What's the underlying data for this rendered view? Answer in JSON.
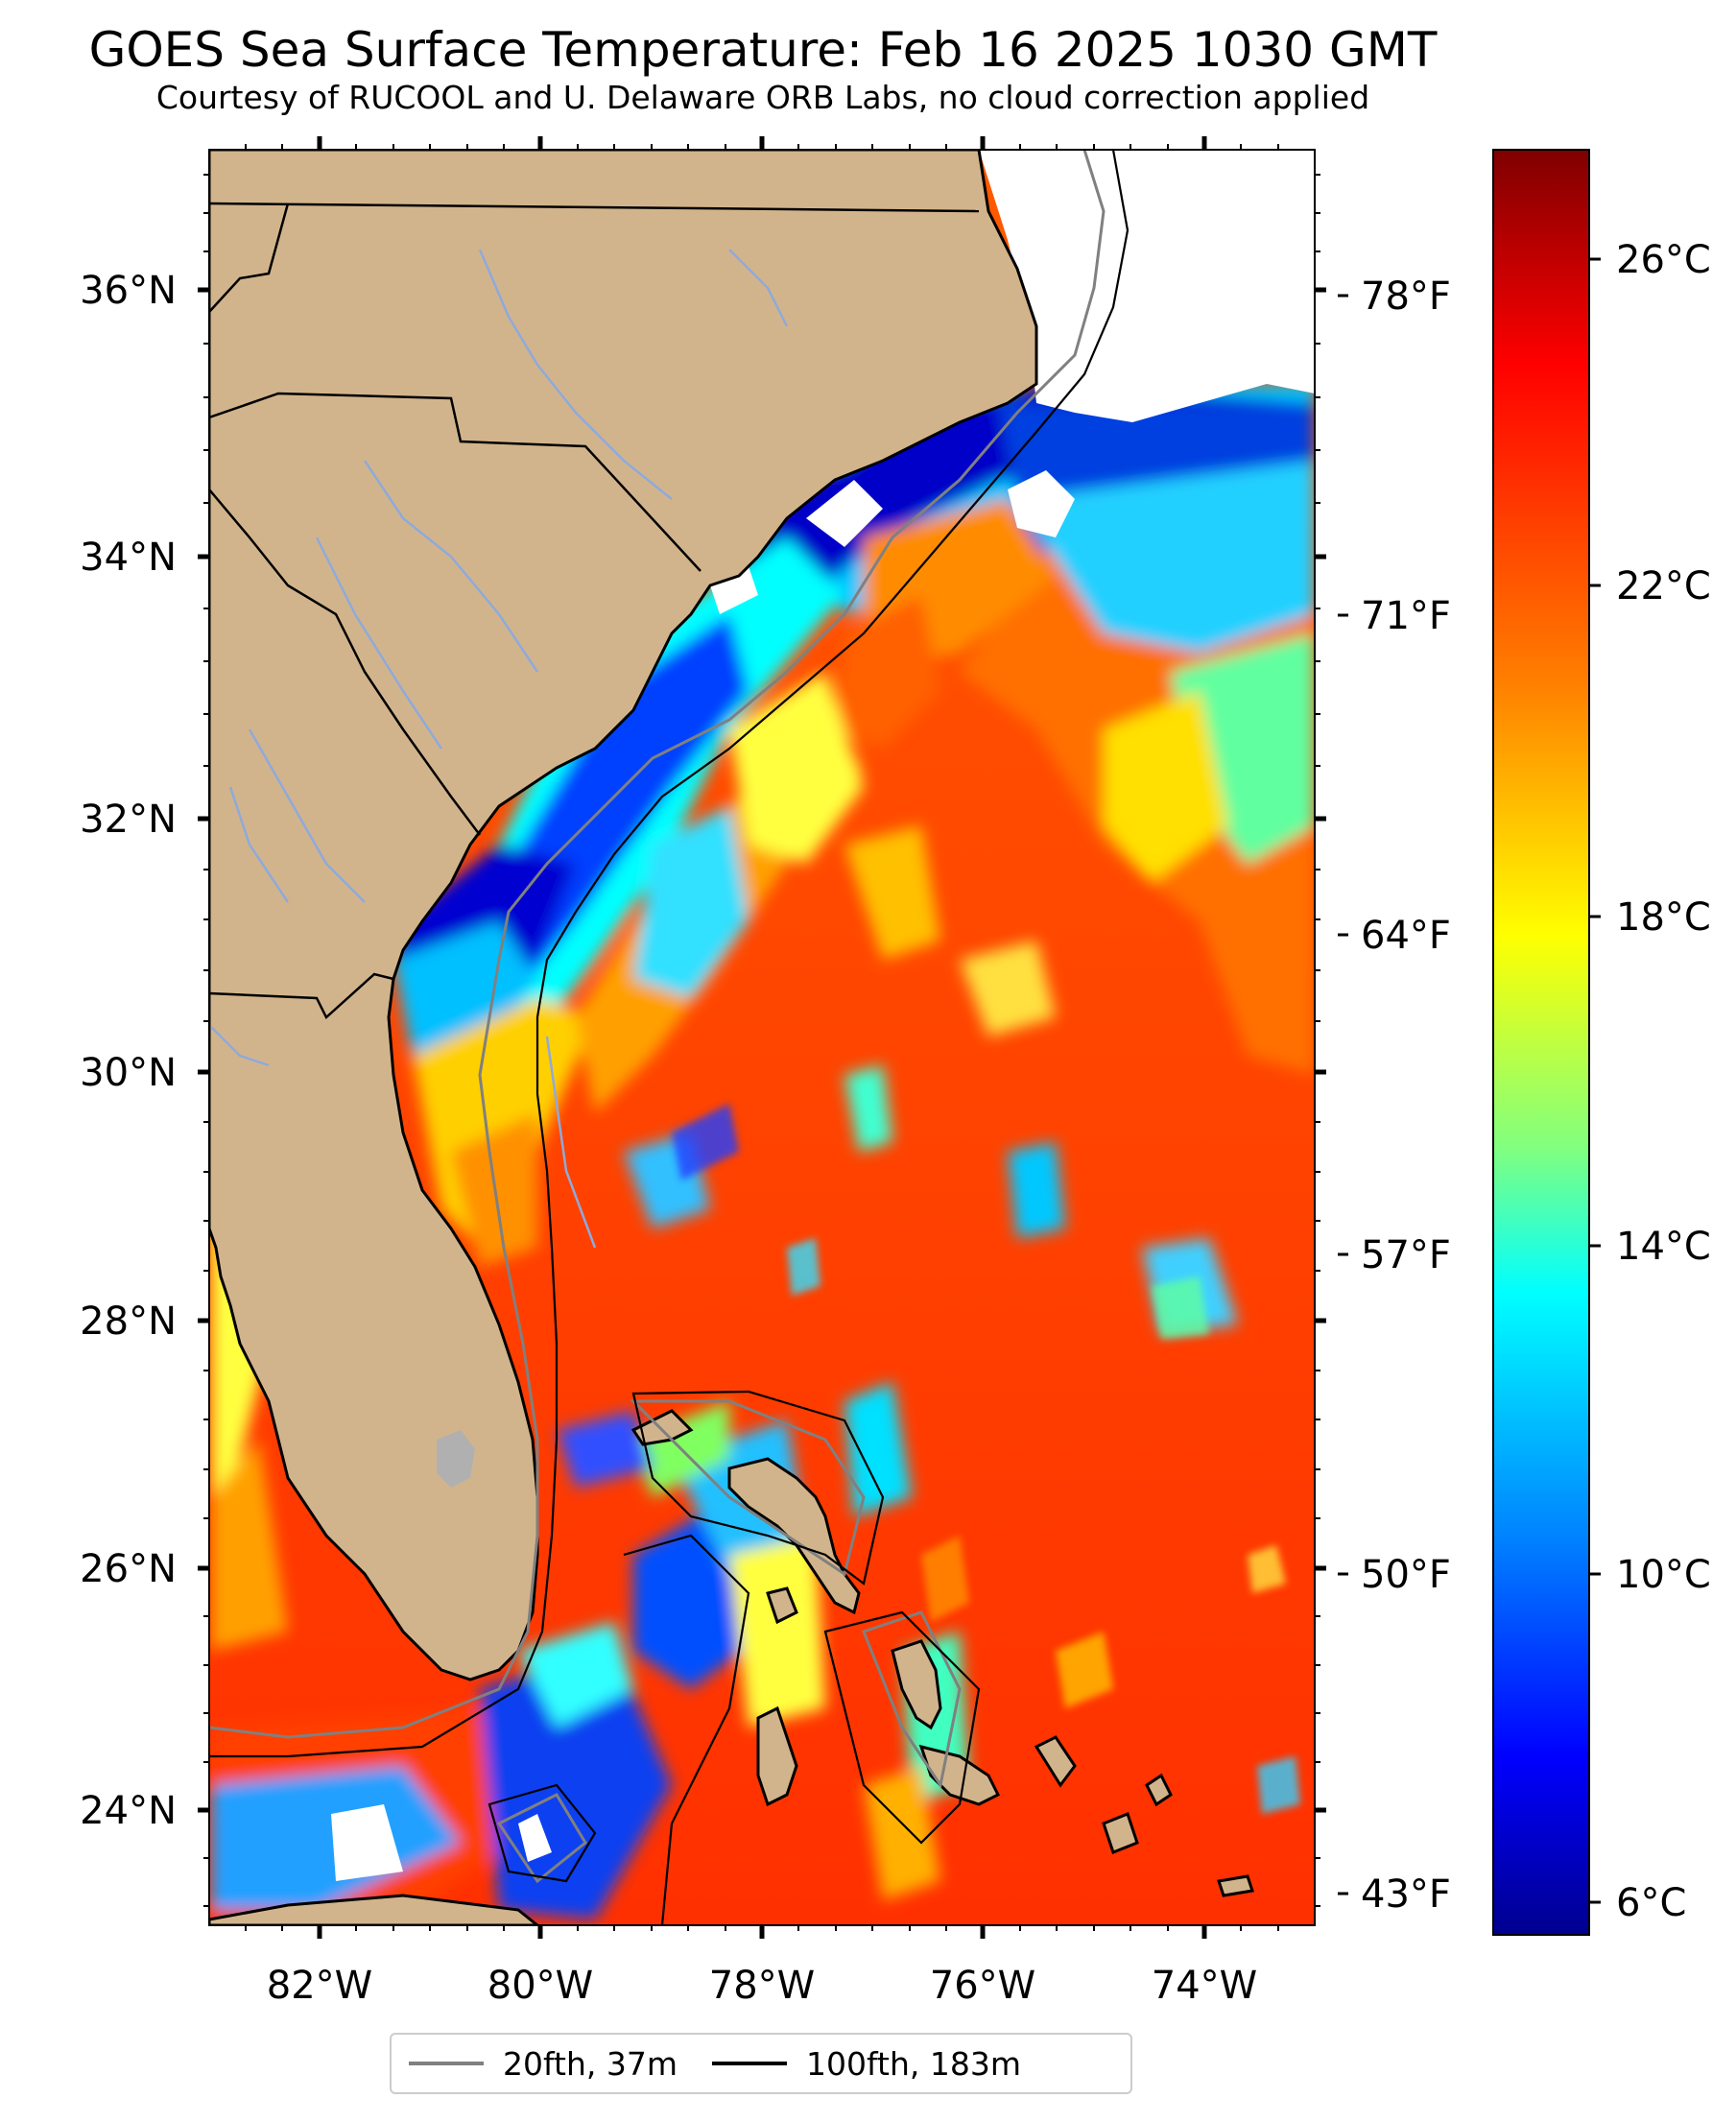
{
  "title": "GOES Sea Surface Temperature: Feb 16 2025 1030 GMT",
  "subtitle": "Courtesy of RUCOOL and U. Delaware ORB Labs, no cloud correction applied",
  "lat_labels": [
    "36°N",
    "34°N",
    "32°N",
    "30°N",
    "28°N",
    "26°N",
    "24°N"
  ],
  "lon_labels": [
    "82°W",
    "80°W",
    "78°W",
    "76°W",
    "74°W"
  ],
  "f_labels": [
    "78°F",
    "71°F",
    "64°F",
    "57°F",
    "50°F",
    "43°F"
  ],
  "colorbar": {
    "labels": [
      "26°C",
      "22°C",
      "18°C",
      "14°C",
      "10°C",
      "6°C"
    ],
    "colors": [
      "#7f0000",
      "#ff0000",
      "#ff8000",
      "#ffff00",
      "#80ff80",
      "#00ffff",
      "#0080ff",
      "#0000ff",
      "#00008f"
    ]
  },
  "legend": {
    "items": [
      {
        "label": "20fth, 37m",
        "color": "#808080"
      },
      {
        "label": "100fth, 183m",
        "color": "#000000"
      }
    ]
  },
  "colors": {
    "land": "#d2b48c",
    "lake": "#b0b0b0",
    "river": "#8eaadc",
    "no_data": "#ffffff"
  }
}
